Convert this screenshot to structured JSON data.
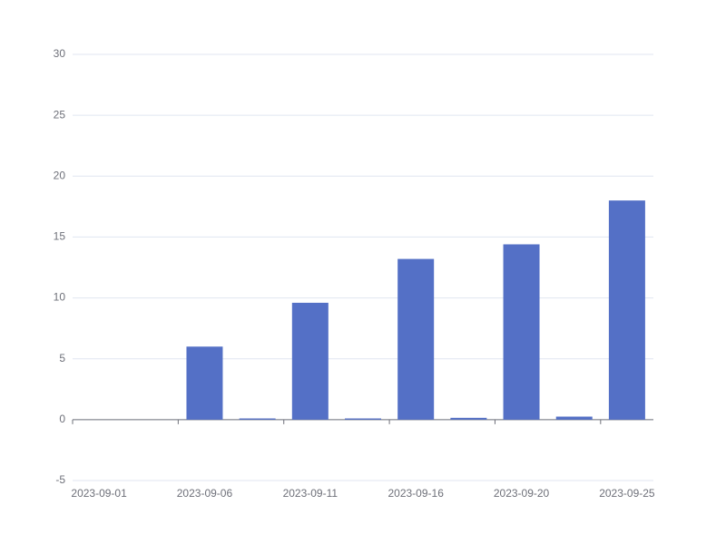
{
  "chart_data": {
    "type": "bar",
    "categories": [
      "2023-09-01",
      null,
      "2023-09-06",
      null,
      "2023-09-11",
      null,
      "2023-09-16",
      null,
      "2023-09-20",
      null,
      "2023-09-25"
    ],
    "values": [
      0,
      0,
      6,
      0.1,
      9.6,
      0.1,
      13.2,
      0.15,
      14.4,
      0.25,
      18
    ],
    "color": "#5470c6",
    "ylim": [
      -5,
      30
    ],
    "yticks": [
      -5,
      0,
      5,
      10,
      15,
      20,
      25,
      30
    ],
    "grid": true
  }
}
